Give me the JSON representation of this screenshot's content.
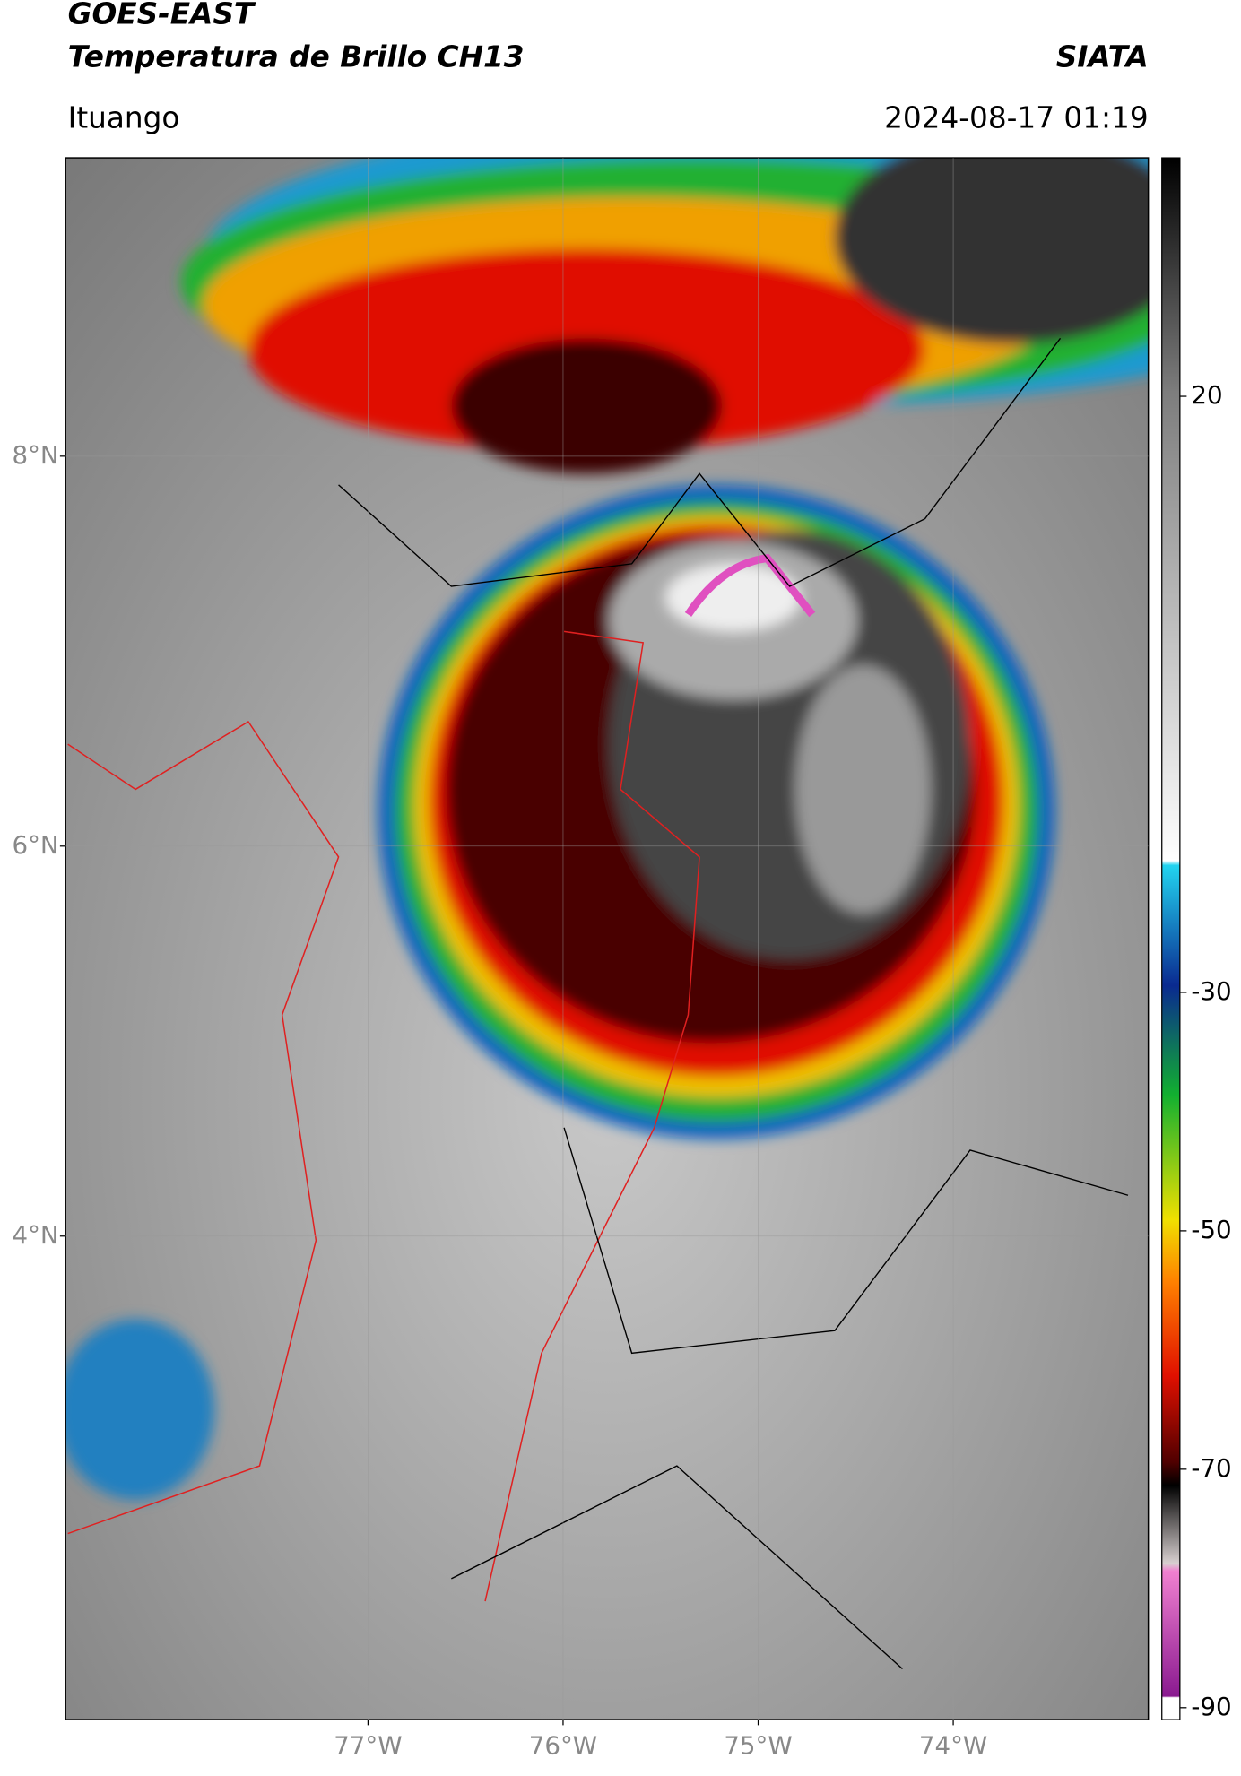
{
  "header": {
    "title": "GOES-EAST",
    "subtitle": "Temperatura de Brillo CH13",
    "source": "SIATA",
    "location": "Ituango",
    "datetime": "2024-08-17 01:19"
  },
  "map": {
    "xlim": [
      -78.55,
      -73.0
    ],
    "ylim": [
      1.52,
      9.53
    ],
    "xticks": [
      {
        "value": -77,
        "label": "77°W"
      },
      {
        "value": -76,
        "label": "76°W"
      },
      {
        "value": -75,
        "label": "75°W"
      },
      {
        "value": -74,
        "label": "74°W"
      }
    ],
    "yticks": [
      {
        "value": 8,
        "label": "8°N"
      },
      {
        "value": 6,
        "label": "6°N"
      },
      {
        "value": 4,
        "label": "4°N"
      }
    ]
  },
  "colorbar": {
    "lim": [
      -91,
      40
    ],
    "ticks": [
      20,
      -30,
      -50,
      -70,
      -90
    ]
  }
}
